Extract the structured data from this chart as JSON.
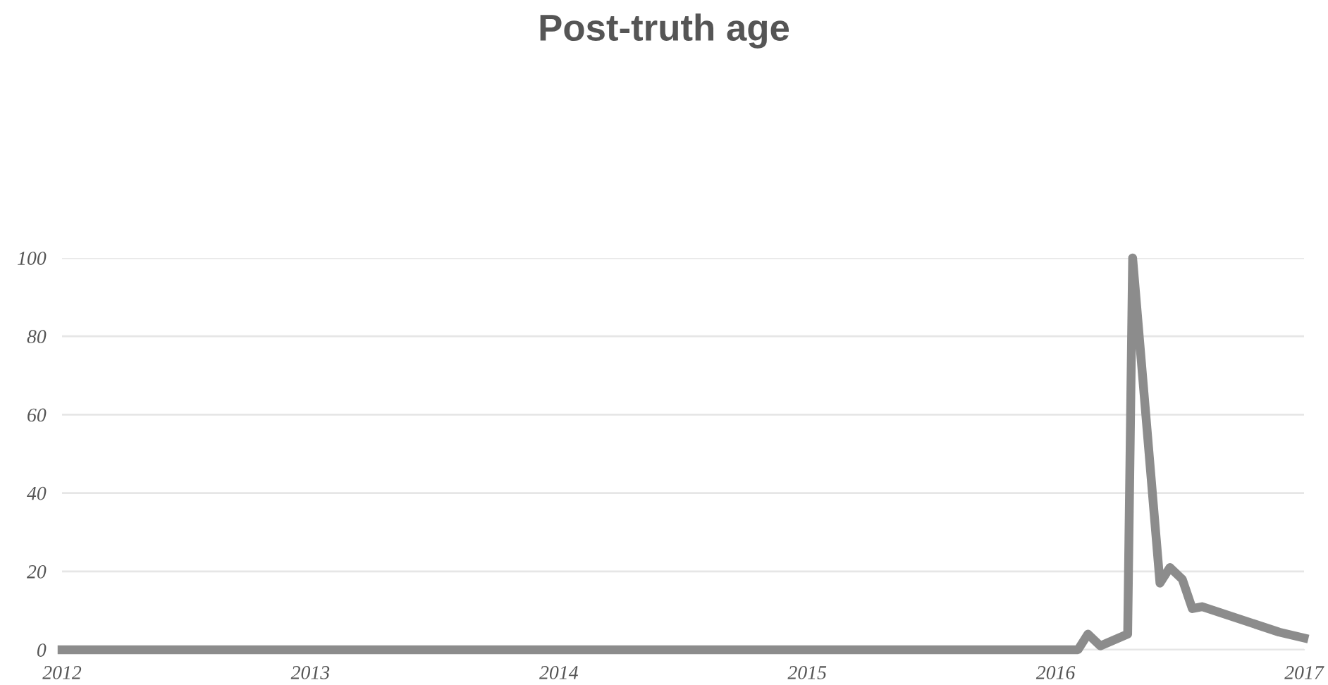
{
  "chart_data": {
    "type": "line",
    "title": "Post-truth age",
    "x": [
      2012,
      2016.09,
      2016.13,
      2016.18,
      2016.29,
      2016.31,
      2016.42,
      2016.46,
      2016.51,
      2016.55,
      2016.59,
      2016.9,
      2017
    ],
    "series": [
      {
        "color": "#8c8c8c",
        "values": [
          0,
          0,
          4,
          1,
          4,
          100,
          17,
          21,
          18,
          10.5,
          11,
          4.5,
          3
        ]
      }
    ],
    "xlim": [
      2012,
      2017
    ],
    "xticks": [
      2012,
      2013,
      2014,
      2015,
      2016,
      2017
    ],
    "ylim": [
      0,
      100
    ],
    "yticks": [
      0,
      20,
      40,
      60,
      80,
      100
    ],
    "grid": "y",
    "marker": "none",
    "line_style": "solid",
    "legend": false
  }
}
